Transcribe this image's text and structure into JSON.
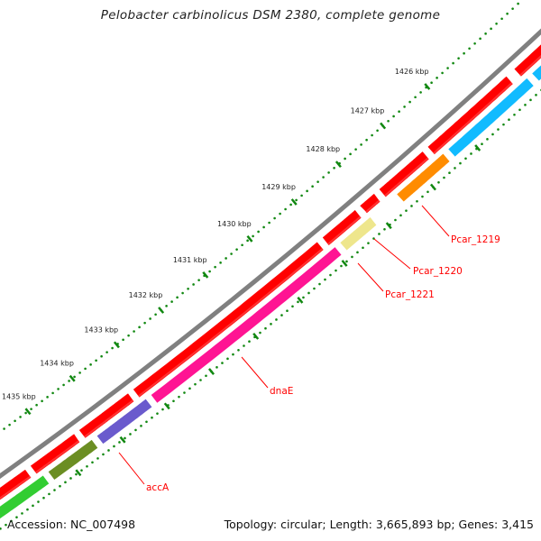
{
  "title": "Pelobacter carbinolicus DSM 2380, complete genome",
  "footer": {
    "accession": "Accession: NC_007498",
    "summary": "Topology: circular; Length: 3,665,893 bp; Genes: 3,415"
  },
  "ticks": [
    "1426 kbp",
    "1427 kbp",
    "1428 kbp",
    "1429 kbp",
    "1430 kbp",
    "1431 kbp",
    "1432 kbp",
    "1433 kbp",
    "1434 kbp",
    "1435 kbp"
  ],
  "gene_labels": [
    "Pcar_1219",
    "Pcar_1220",
    "Pcar_1221",
    "dnaE",
    "accA"
  ],
  "colors": {
    "backbone": "#808080",
    "forward": "#ff0000",
    "tick": "#118811",
    "label": "#ff0000",
    "blue": "#11bbff",
    "orange": "#ff8c00",
    "yellow": "#eee68c",
    "pink": "#ff1493",
    "purple": "#6a5acd",
    "olive": "#6b8e23",
    "green": "#32cd32"
  }
}
